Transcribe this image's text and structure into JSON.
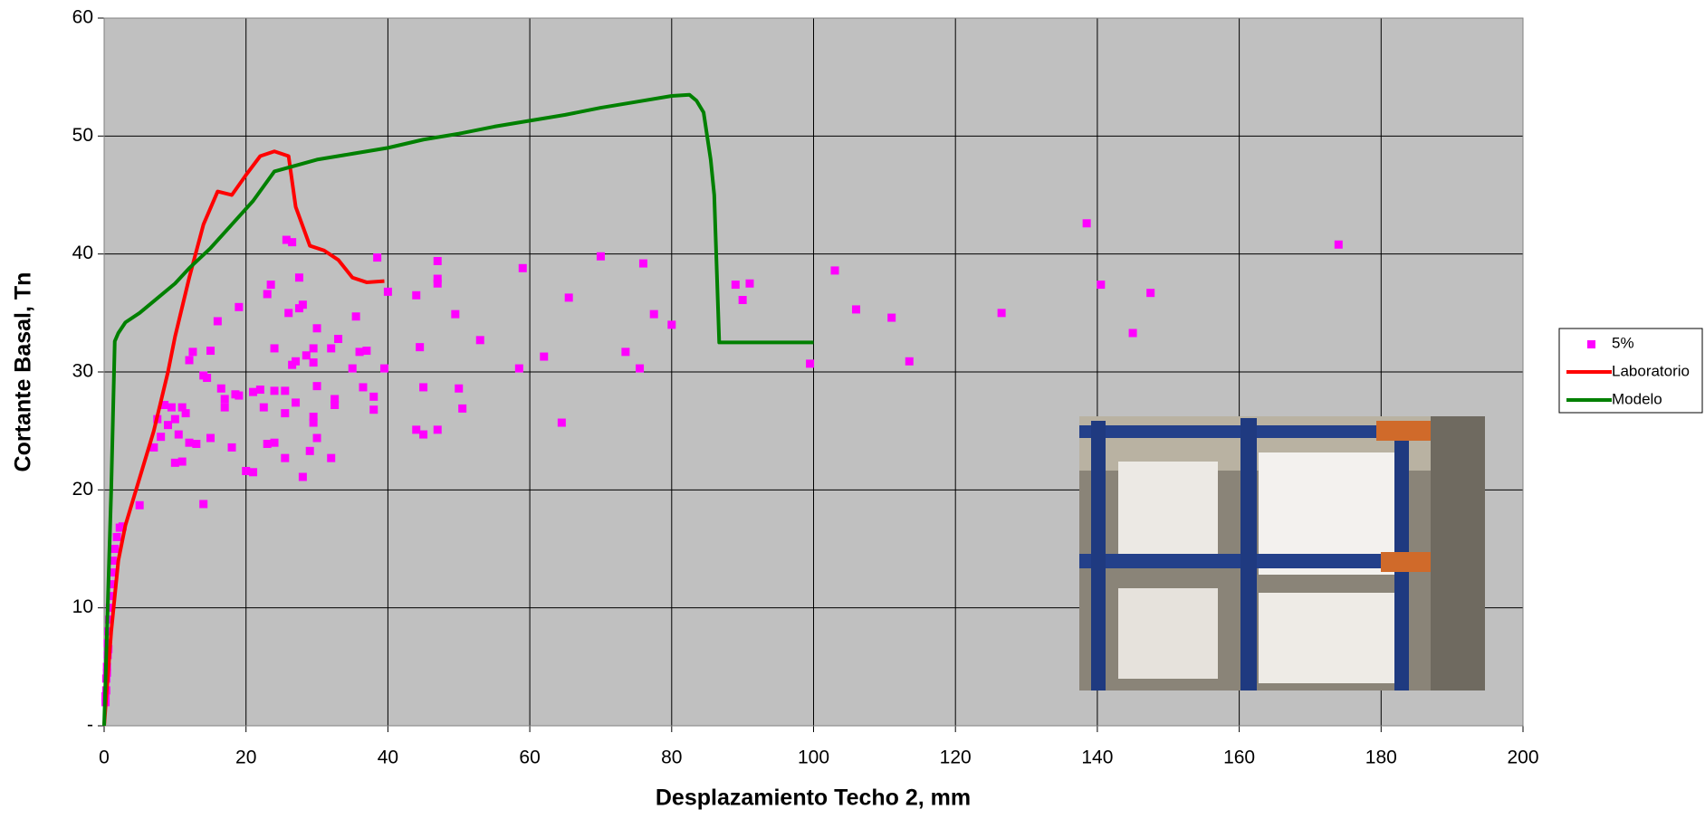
{
  "chart_data": {
    "type": "scatter",
    "x_label": "Desplazamiento Techo 2, mm",
    "y_label": "Cortante Basal, Tn",
    "xlim": [
      0,
      200
    ],
    "ylim": [
      0,
      60
    ],
    "xticks": [
      0,
      20,
      40,
      60,
      80,
      100,
      120,
      140,
      160,
      180,
      200
    ],
    "yticks": [
      {
        "value": 0,
        "label": "-"
      },
      10,
      20,
      30,
      40,
      50,
      60
    ],
    "grid": true,
    "legend_position": "right",
    "plot_background": "#c0c0c0",
    "series": [
      {
        "name": "5%",
        "type": "scatter",
        "color": "#ff00ff",
        "x": [
          0.2,
          0.3,
          0.3,
          0.4,
          0.5,
          0.5,
          0.6,
          0.7,
          0.8,
          0.9,
          1,
          1.1,
          1.2,
          1.5,
          1.8,
          2.2,
          2.6,
          0.2,
          0.4,
          0.6,
          5,
          7,
          7.5,
          8,
          8.5,
          9,
          9.5,
          10,
          10,
          10.5,
          11,
          11,
          11.5,
          12,
          12,
          12.5,
          13,
          14,
          14,
          14.5,
          15,
          15,
          16,
          16.5,
          17,
          17,
          18,
          18.5,
          19,
          19,
          20,
          21,
          21,
          22,
          22.5,
          23,
          23,
          23.5,
          24,
          24,
          24,
          25.5,
          25.5,
          25.5,
          25.7,
          26,
          26.5,
          26.5,
          27,
          27,
          27.5,
          27.5,
          28,
          28,
          28.5,
          29,
          29.5,
          29.5,
          29.5,
          29.5,
          30,
          30,
          30,
          32,
          32,
          32.5,
          32.5,
          33,
          35,
          35.5,
          36,
          36.5,
          37,
          38,
          38,
          38.5,
          39.5,
          40,
          44,
          44,
          44.5,
          45,
          45,
          47,
          47,
          47,
          47,
          49.5,
          50,
          50.5,
          53,
          58.5,
          59,
          62,
          64.5,
          65.5,
          70,
          73.5,
          75.5,
          76,
          77.5,
          80,
          89,
          90,
          91,
          99.5,
          103,
          106,
          111,
          113.5,
          126.5,
          138.5,
          140.5,
          145,
          147.5,
          174
        ],
        "values": [
          2,
          3,
          4,
          5,
          6,
          7,
          8,
          9,
          10,
          11,
          12,
          13,
          14,
          15,
          16,
          16.8,
          16.9,
          2.5,
          4.5,
          6.5,
          18.7,
          23.6,
          26,
          24.5,
          27.2,
          25.5,
          27,
          22.3,
          26,
          24.7,
          22.4,
          27,
          26.5,
          31,
          24,
          31.7,
          23.9,
          29.7,
          18.8,
          29.5,
          24.4,
          31.8,
          34.3,
          28.6,
          27.7,
          27,
          23.6,
          28.1,
          35.5,
          28,
          21.6,
          21.5,
          28.3,
          28.5,
          27,
          23.9,
          36.6,
          37.4,
          24,
          32,
          28.4,
          28.4,
          26.5,
          22.7,
          41.2,
          35,
          41,
          30.6,
          30.9,
          27.4,
          35.4,
          38,
          35.7,
          21.1,
          31.4,
          23.3,
          30.8,
          25.7,
          32,
          26.2,
          33.7,
          24.4,
          28.8,
          22.7,
          32,
          27.2,
          27.7,
          32.8,
          30.3,
          34.7,
          31.7,
          28.7,
          31.8,
          26.8,
          27.9,
          39.7,
          30.3,
          36.8,
          36.5,
          25.1,
          32.1,
          24.7,
          28.7,
          39.4,
          37.9,
          37.5,
          25.1,
          34.9,
          28.6,
          26.9,
          32.7,
          30.3,
          38.8,
          31.3,
          25.7,
          36.3,
          39.8,
          31.7,
          30.3,
          39.2,
          34.9,
          34,
          37.4,
          36.1,
          37.5,
          30.7,
          38.6,
          35.3,
          34.6,
          30.9,
          35,
          42.6,
          37.4,
          33.3,
          36.7,
          40.8
        ]
      },
      {
        "name": "Laboratorio",
        "type": "line",
        "color": "#ff0000",
        "x": [
          0,
          1,
          2,
          3,
          5,
          7,
          9,
          10,
          12,
          14,
          16,
          18,
          20,
          22,
          24,
          26,
          27,
          29,
          31,
          33,
          35,
          37,
          39.5
        ],
        "values": [
          0,
          8,
          14,
          17,
          21,
          25,
          30,
          33,
          38,
          42.5,
          45.3,
          45,
          46.7,
          48.3,
          48.7,
          48.3,
          44,
          40.7,
          40.3,
          39.5,
          38,
          37.6,
          37.7
        ]
      },
      {
        "name": "Modelo",
        "type": "line",
        "color": "#008000",
        "x": [
          0,
          0.5,
          1,
          1.5,
          2,
          3,
          5,
          7,
          10,
          12,
          15,
          18,
          21,
          24,
          27,
          30,
          35,
          40,
          45,
          50,
          55,
          60,
          65,
          70,
          75,
          80,
          82.5,
          83.5,
          84.5,
          85.5,
          86,
          86.7,
          90,
          100
        ],
        "values": [
          0,
          10,
          20,
          32.6,
          33.3,
          34.2,
          35,
          36,
          37.5,
          38.8,
          40.5,
          42.5,
          44.5,
          47,
          47.5,
          48,
          48.5,
          49,
          49.7,
          50.2,
          50.8,
          51.3,
          51.8,
          52.4,
          52.9,
          53.4,
          53.5,
          53,
          52,
          48,
          45,
          32.5,
          32.5,
          32.5
        ]
      }
    ]
  }
}
